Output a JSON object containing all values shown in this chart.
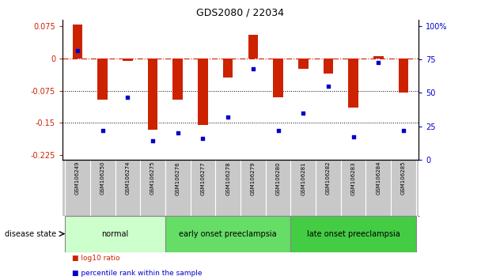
{
  "title": "GDS2080 / 22034",
  "samples": [
    "GSM106249",
    "GSM106250",
    "GSM106274",
    "GSM106275",
    "GSM106276",
    "GSM106277",
    "GSM106278",
    "GSM106279",
    "GSM106280",
    "GSM106281",
    "GSM106282",
    "GSM106283",
    "GSM106284",
    "GSM106285"
  ],
  "log10_ratio": [
    0.079,
    -0.095,
    -0.005,
    -0.165,
    -0.095,
    -0.155,
    -0.045,
    0.055,
    -0.09,
    -0.025,
    -0.035,
    -0.115,
    0.005,
    -0.08
  ],
  "percentile_rank": [
    82,
    22,
    47,
    14,
    20,
    16,
    32,
    68,
    22,
    35,
    55,
    17,
    73,
    22
  ],
  "ylim_left": [
    -0.235,
    0.09
  ],
  "ylim_right": [
    0,
    105
  ],
  "yticks_left": [
    0.075,
    0,
    -0.075,
    -0.15,
    -0.225
  ],
  "yticks_right": [
    100,
    75,
    50,
    25,
    0
  ],
  "ytick_right_labels": [
    "100%",
    "75",
    "50",
    "25",
    "0"
  ],
  "groups": [
    {
      "label": "normal",
      "start": 0,
      "end": 3,
      "color": "#ccffcc"
    },
    {
      "label": "early onset preeclampsia",
      "start": 4,
      "end": 8,
      "color": "#66dd66"
    },
    {
      "label": "late onset preeclampsia",
      "start": 9,
      "end": 13,
      "color": "#44cc44"
    }
  ],
  "bar_color": "#cc2200",
  "dot_color": "#0000cc",
  "ref_line_color": "#cc2200",
  "grid_color": "black",
  "tick_area_color": "#c8c8c8",
  "legend_items": [
    {
      "label": "log10 ratio",
      "color": "#cc2200"
    },
    {
      "label": "percentile rank within the sample",
      "color": "#0000cc"
    }
  ]
}
